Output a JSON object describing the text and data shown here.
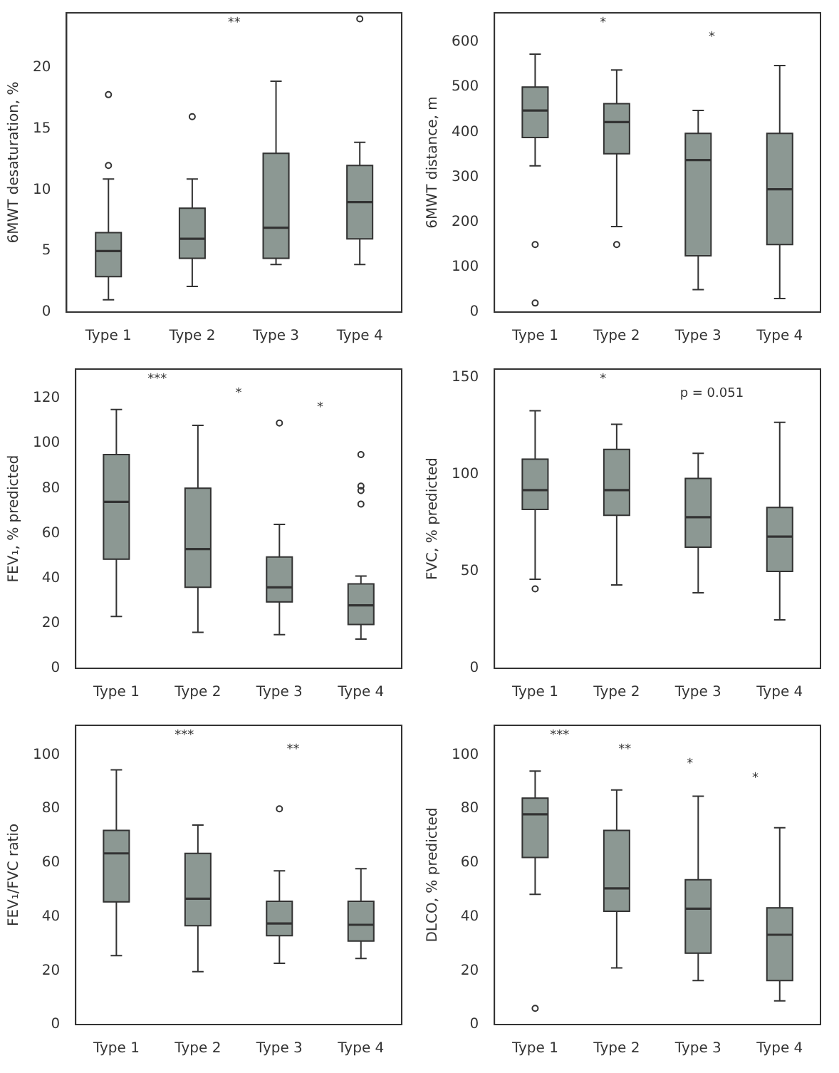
{
  "chart_data": [
    {
      "type": "box",
      "ylabel": "6MWT desaturation, %",
      "categories": [
        "Type 1",
        "Type 2",
        "Type 3",
        "Type 4"
      ],
      "color": "#8c9893",
      "ylim": [
        0,
        24.5
      ],
      "yticks": [
        0,
        5,
        10,
        15,
        20
      ],
      "grid": false,
      "boxes": [
        {
          "low": 1,
          "q1": 2.9,
          "median": 5,
          "q3": 6.5,
          "high": 10.9,
          "outliers": [
            12,
            17.8
          ]
        },
        {
          "low": 2.1,
          "q1": 4.4,
          "median": 6,
          "q3": 8.5,
          "high": 10.9,
          "outliers": [
            16
          ]
        },
        {
          "low": 3.9,
          "q1": 4.4,
          "median": 6.9,
          "q3": 13,
          "high": 18.9
        },
        {
          "low": 3.9,
          "q1": 6,
          "median": 9,
          "q3": 12,
          "high": 13.9,
          "outliers": [
            24
          ]
        }
      ],
      "annotations": [
        "**"
      ]
    },
    {
      "type": "box",
      "ylabel": "6MWT distance, m",
      "categories": [
        "Type 1",
        "Type 2",
        "Type 3",
        "Type 4"
      ],
      "color": "#8c9893",
      "ylim": [
        0,
        665
      ],
      "yticks": [
        0,
        100,
        200,
        300,
        400,
        500,
        600
      ],
      "grid": false,
      "boxes": [
        {
          "low": 325,
          "q1": 388,
          "median": 448,
          "q3": 500,
          "high": 573,
          "outliers": [
            150,
            20
          ]
        },
        {
          "low": 190,
          "q1": 352,
          "median": 422,
          "q3": 463,
          "high": 538,
          "outliers": [
            150
          ]
        },
        {
          "low": 50,
          "q1": 125,
          "median": 338,
          "q3": 397,
          "high": 448
        },
        {
          "low": 30,
          "q1": 150,
          "median": 273,
          "q3": 397,
          "high": 548
        }
      ],
      "annotations": [
        "*",
        "*"
      ]
    },
    {
      "type": "box",
      "ylabel": "FEV₁, % predicted",
      "categories": [
        "Type 1",
        "Type 2",
        "Type 3",
        "Type 4"
      ],
      "color": "#8c9893",
      "ylim": [
        0,
        133
      ],
      "yticks": [
        0,
        20,
        40,
        60,
        80,
        100,
        120
      ],
      "grid": false,
      "boxes": [
        {
          "low": 23,
          "q1": 48.5,
          "median": 74,
          "q3": 95,
          "high": 115
        },
        {
          "low": 16,
          "q1": 36,
          "median": 53,
          "q3": 80,
          "high": 108
        },
        {
          "low": 15,
          "q1": 29.5,
          "median": 36,
          "q3": 49.5,
          "high": 64,
          "outliers": [
            109
          ]
        },
        {
          "low": 13,
          "q1": 19.5,
          "median": 28,
          "q3": 37.5,
          "high": 41,
          "outliers": [
            73,
            79,
            81,
            95
          ]
        }
      ],
      "annotations": [
        "***",
        "*",
        "*"
      ]
    },
    {
      "type": "box",
      "ylabel": "FVC, % predicted",
      "categories": [
        "Type 1",
        "Type 2",
        "Type 3",
        "Type 4"
      ],
      "color": "#8c9893",
      "ylim": [
        0,
        154.5
      ],
      "yticks": [
        0,
        50,
        100,
        150
      ],
      "grid": false,
      "boxes": [
        {
          "low": 46,
          "q1": 82,
          "median": 92,
          "q3": 108,
          "high": 133,
          "outliers": [
            41
          ]
        },
        {
          "low": 43,
          "q1": 79,
          "median": 92,
          "q3": 113,
          "high": 126
        },
        {
          "low": 39,
          "q1": 62.5,
          "median": 78,
          "q3": 98,
          "high": 111
        },
        {
          "low": 25,
          "q1": 50,
          "median": 68,
          "q3": 83,
          "high": 127
        }
      ],
      "annotations": [
        "*",
        "p = 0.051"
      ]
    },
    {
      "type": "box",
      "ylabel": "FEV₁/FVC ratio",
      "categories": [
        "Type 1",
        "Type 2",
        "Type 3",
        "Type 4"
      ],
      "color": "#8c9893",
      "ylim": [
        0,
        111
      ],
      "yticks": [
        0,
        20,
        40,
        60,
        80,
        100
      ],
      "grid": false,
      "boxes": [
        {
          "low": 25.6,
          "q1": 45.5,
          "median": 63.5,
          "q3": 72,
          "high": 94.5
        },
        {
          "low": 19.6,
          "q1": 36.7,
          "median": 46.7,
          "q3": 63.5,
          "high": 74
        },
        {
          "low": 22.7,
          "q1": 33,
          "median": 37.5,
          "q3": 45.7,
          "high": 57,
          "outliers": [
            80
          ]
        },
        {
          "low": 24.5,
          "q1": 31,
          "median": 37,
          "q3": 45.7,
          "high": 57.8
        }
      ],
      "annotations": [
        "***",
        "**"
      ]
    },
    {
      "type": "box",
      "ylabel": "DLCO, % predicted",
      "categories": [
        "Type 1",
        "Type 2",
        "Type 3",
        "Type 4"
      ],
      "color": "#8c9893",
      "ylim": [
        0,
        111
      ],
      "yticks": [
        0,
        20,
        40,
        60,
        80,
        100
      ],
      "grid": false,
      "boxes": [
        {
          "low": 48.3,
          "q1": 62,
          "median": 78,
          "q3": 84,
          "high": 94,
          "outliers": [
            6
          ]
        },
        {
          "low": 21,
          "q1": 42,
          "median": 50.5,
          "q3": 72,
          "high": 87
        },
        {
          "low": 16.3,
          "q1": 26.5,
          "median": 43,
          "q3": 53.7,
          "high": 84.7
        },
        {
          "low": 8.8,
          "q1": 16.3,
          "median": 33.3,
          "q3": 43.3,
          "high": 73
        }
      ],
      "annotations": [
        "***",
        "**",
        "*",
        "*"
      ]
    }
  ]
}
